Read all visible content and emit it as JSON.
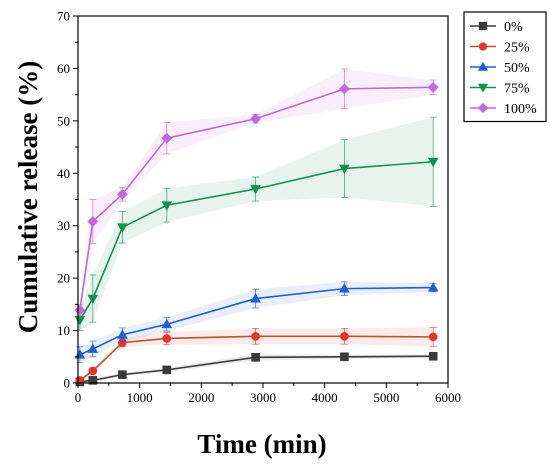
{
  "chart_data": {
    "type": "line",
    "xlabel": "Time (min)",
    "ylabel": "Cumulative release (%)",
    "xlim": [
      0,
      6000
    ],
    "ylim": [
      0,
      70
    ],
    "xticks": [
      "0",
      "1000",
      "2000",
      "3000",
      "4000",
      "5000",
      "6000"
    ],
    "yticks": [
      "0",
      "10",
      "20",
      "30",
      "40",
      "50",
      "60",
      "70"
    ],
    "legend_position": "top-right",
    "grid": false,
    "x": [
      30,
      240,
      720,
      1440,
      2880,
      4320,
      5760
    ],
    "series": [
      {
        "name": "0%",
        "color": "#3a3a3a",
        "marker": "square",
        "values": [
          0.2,
          0.5,
          1.6,
          2.5,
          4.9,
          5.0,
          5.1
        ],
        "errors": [
          0.2,
          0.3,
          0.3,
          0.4,
          0.6,
          0.4,
          0.4
        ]
      },
      {
        "name": "25%",
        "color": "#e8302c",
        "line_color": "#b05a2c",
        "marker": "circle",
        "values": [
          0.5,
          2.3,
          7.7,
          8.5,
          8.9,
          8.9,
          8.8
        ],
        "errors": [
          0.3,
          0.6,
          0.8,
          1.2,
          1.5,
          1.5,
          1.8
        ]
      },
      {
        "name": "50%",
        "color": "#1e5fd6",
        "marker": "triangle-up",
        "values": [
          5.4,
          6.5,
          9.2,
          11.2,
          16.1,
          18.0,
          18.2
        ],
        "errors": [
          1.5,
          1.5,
          1.3,
          1.3,
          1.8,
          1.3,
          0.8
        ]
      },
      {
        "name": "75%",
        "color": "#119152",
        "marker": "triangle-down",
        "values": [
          12.0,
          16.1,
          29.7,
          33.9,
          37.0,
          40.9,
          42.2
        ],
        "errors": [
          2.0,
          4.5,
          3.0,
          3.2,
          2.3,
          5.5,
          8.5
        ]
      },
      {
        "name": "100%",
        "color": "#c466e0",
        "marker": "diamond",
        "values": [
          13.9,
          30.8,
          36.0,
          46.7,
          50.4,
          56.1,
          56.4
        ],
        "errors": [
          1.0,
          4.2,
          1.3,
          3.0,
          0.8,
          3.8,
          1.4
        ]
      }
    ]
  }
}
